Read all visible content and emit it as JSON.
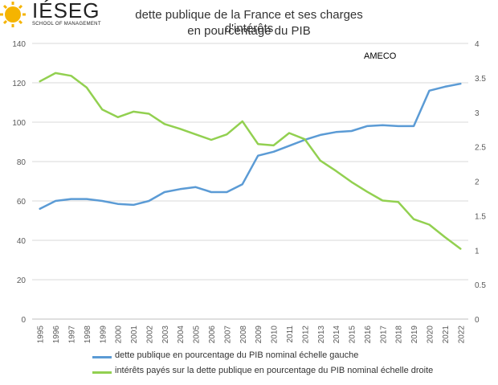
{
  "logo": {
    "wordmark": "IÉSEG",
    "subline": "SCHOOL OF MANAGEMENT",
    "icon": "sun-logo-icon",
    "color": "#f5b400"
  },
  "chart_data": {
    "type": "line",
    "title": "dette publique de la France et ses charges d'intérêts",
    "subtitle": "en pourcentage du PIB",
    "annotation": "AMECO",
    "categories": [
      "1995",
      "1996",
      "1997",
      "1998",
      "1999",
      "2000",
      "2001",
      "2002",
      "2003",
      "2004",
      "2005",
      "2006",
      "2007",
      "2008",
      "2009",
      "2010",
      "2011",
      "2012",
      "2013",
      "2014",
      "2015",
      "2016",
      "2017",
      "2018",
      "2019",
      "2020",
      "2021",
      "2022"
    ],
    "left_axis": {
      "ylim": [
        0,
        140
      ],
      "ticks": [
        "0",
        "20",
        "40",
        "60",
        "80",
        "100",
        "120",
        "140"
      ]
    },
    "right_axis": {
      "ylim": [
        0,
        4
      ],
      "ticks": [
        "0",
        "0.5",
        "1",
        "1.5",
        "2",
        "2.5",
        "3",
        "3.5",
        "4"
      ]
    },
    "grid": true,
    "legend_position": "bottom",
    "series": [
      {
        "name": "dette publique en pourcentage du PIB nominal échelle gauche",
        "axis": "left",
        "color": "#5b9bd5",
        "values": [
          56,
          60,
          61,
          61,
          60,
          58.5,
          58,
          60,
          64.5,
          66,
          67,
          64.5,
          64.5,
          68.5,
          83,
          85,
          88,
          91,
          93.5,
          95,
          95.5,
          98,
          98.5,
          98,
          98,
          116,
          118,
          119.5
        ]
      },
      {
        "name": "intérêts payés sur la dette publique en pourcentage du PIB nominal échelle droite",
        "axis": "right",
        "color": "#92d050",
        "values": [
          3.45,
          3.57,
          3.53,
          3.36,
          3.04,
          2.93,
          3.01,
          2.98,
          2.83,
          2.76,
          2.68,
          2.6,
          2.68,
          2.87,
          2.54,
          2.52,
          2.7,
          2.61,
          2.3,
          2.15,
          1.99,
          1.85,
          1.72,
          1.7,
          1.45,
          1.37,
          1.19,
          1.02
        ]
      }
    ]
  }
}
